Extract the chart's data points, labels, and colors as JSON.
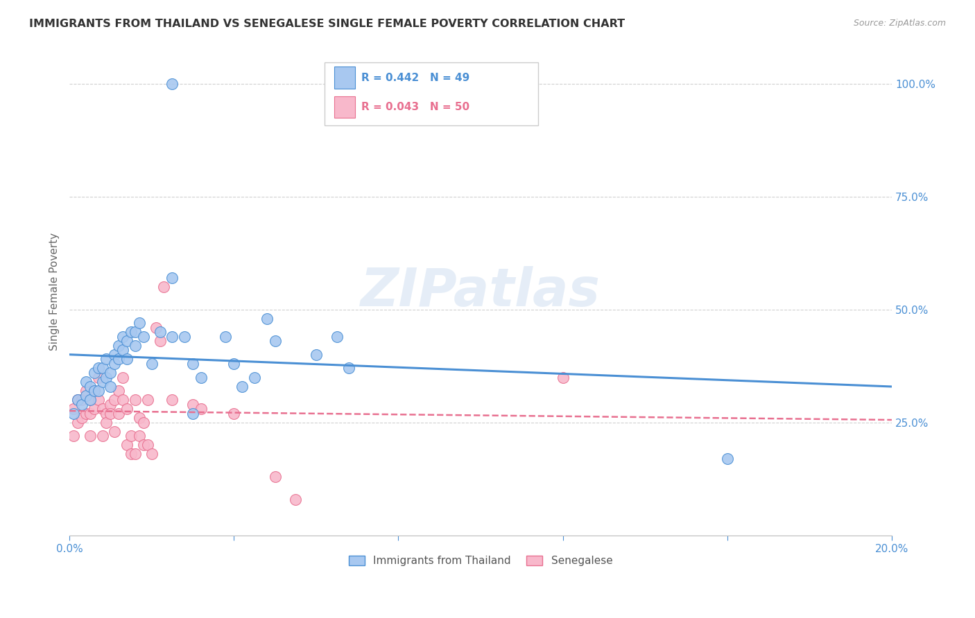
{
  "title": "IMMIGRANTS FROM THAILAND VS SENEGALESE SINGLE FEMALE POVERTY CORRELATION CHART",
  "source": "Source: ZipAtlas.com",
  "ylabel": "Single Female Poverty",
  "ytick_labels": [
    "100.0%",
    "75.0%",
    "50.0%",
    "25.0%"
  ],
  "ytick_values": [
    1.0,
    0.75,
    0.5,
    0.25
  ],
  "xtick_positions": [
    0.0,
    0.04,
    0.08,
    0.12,
    0.16,
    0.2
  ],
  "xlim": [
    0.0,
    0.2
  ],
  "ylim": [
    0.0,
    1.08
  ],
  "legend_blue_R": "R = 0.442",
  "legend_blue_N": "N = 49",
  "legend_pink_R": "R = 0.043",
  "legend_pink_N": "N = 50",
  "blue_color": "#a8c8f0",
  "pink_color": "#f8b8cb",
  "blue_line_color": "#4a8fd4",
  "pink_line_color": "#e87090",
  "watermark": "ZIPatlas",
  "blue_scatter_x": [
    0.001,
    0.002,
    0.003,
    0.004,
    0.004,
    0.005,
    0.005,
    0.006,
    0.006,
    0.007,
    0.007,
    0.008,
    0.008,
    0.009,
    0.009,
    0.01,
    0.01,
    0.011,
    0.011,
    0.012,
    0.012,
    0.013,
    0.013,
    0.014,
    0.014,
    0.015,
    0.016,
    0.016,
    0.017,
    0.018,
    0.02,
    0.022,
    0.025,
    0.028,
    0.03,
    0.032,
    0.038,
    0.04,
    0.042,
    0.045,
    0.048,
    0.05,
    0.06,
    0.065,
    0.068,
    0.025,
    0.03,
    0.16,
    0.025
  ],
  "blue_scatter_y": [
    0.27,
    0.3,
    0.29,
    0.31,
    0.34,
    0.3,
    0.33,
    0.32,
    0.36,
    0.32,
    0.37,
    0.34,
    0.37,
    0.35,
    0.39,
    0.33,
    0.36,
    0.4,
    0.38,
    0.42,
    0.39,
    0.44,
    0.41,
    0.43,
    0.39,
    0.45,
    0.42,
    0.45,
    0.47,
    0.44,
    0.38,
    0.45,
    0.57,
    0.44,
    0.38,
    0.35,
    0.44,
    0.38,
    0.33,
    0.35,
    0.48,
    0.43,
    0.4,
    0.44,
    0.37,
    0.44,
    0.27,
    0.17,
    1.0
  ],
  "pink_scatter_x": [
    0.001,
    0.001,
    0.002,
    0.002,
    0.003,
    0.003,
    0.004,
    0.004,
    0.005,
    0.005,
    0.005,
    0.006,
    0.006,
    0.007,
    0.007,
    0.008,
    0.008,
    0.009,
    0.009,
    0.01,
    0.01,
    0.011,
    0.011,
    0.012,
    0.012,
    0.013,
    0.013,
    0.014,
    0.014,
    0.015,
    0.015,
    0.016,
    0.016,
    0.017,
    0.017,
    0.018,
    0.018,
    0.019,
    0.019,
    0.02,
    0.021,
    0.022,
    0.023,
    0.025,
    0.03,
    0.032,
    0.04,
    0.05,
    0.055,
    0.12
  ],
  "pink_scatter_y": [
    0.28,
    0.22,
    0.3,
    0.25,
    0.3,
    0.26,
    0.27,
    0.32,
    0.27,
    0.3,
    0.22,
    0.28,
    0.32,
    0.3,
    0.35,
    0.28,
    0.22,
    0.27,
    0.25,
    0.29,
    0.27,
    0.3,
    0.23,
    0.32,
    0.27,
    0.3,
    0.35,
    0.28,
    0.2,
    0.18,
    0.22,
    0.3,
    0.18,
    0.26,
    0.22,
    0.2,
    0.25,
    0.3,
    0.2,
    0.18,
    0.46,
    0.43,
    0.55,
    0.3,
    0.29,
    0.28,
    0.27,
    0.13,
    0.08,
    0.35
  ],
  "background_color": "#ffffff",
  "grid_color": "#d0d0d0"
}
